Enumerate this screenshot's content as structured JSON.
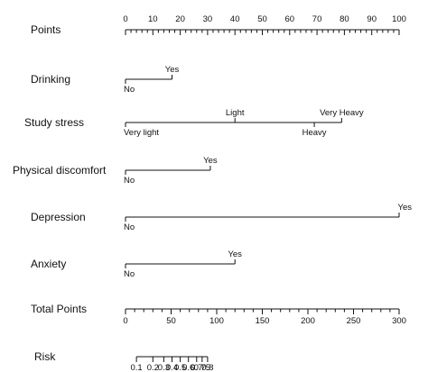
{
  "chart_data": {
    "type": "nomogram",
    "points": {
      "label": "Points",
      "range": [
        0,
        100
      ],
      "major_ticks": [
        0,
        10,
        20,
        30,
        40,
        50,
        60,
        70,
        80,
        90,
        100
      ],
      "minor_step": 2
    },
    "predictors": [
      {
        "label": "Drinking",
        "levels": [
          {
            "name": "No",
            "points": 0,
            "text_pos": "below"
          },
          {
            "name": "Yes",
            "points": 17,
            "text_pos": "above"
          }
        ]
      },
      {
        "label": "Study stress",
        "levels": [
          {
            "name": "Very light",
            "points": 0,
            "text_pos": "below"
          },
          {
            "name": "Light",
            "points": 40,
            "text_pos": "above"
          },
          {
            "name": "Heavy",
            "points": 69,
            "text_pos": "below"
          },
          {
            "name": "Very Heavy",
            "points": 79,
            "text_pos": "above"
          }
        ]
      },
      {
        "label": "Physical discomfort",
        "levels": [
          {
            "name": "No",
            "points": 0,
            "text_pos": "below"
          },
          {
            "name": "Yes",
            "points": 31,
            "text_pos": "above"
          }
        ]
      },
      {
        "label": "Depression",
        "levels": [
          {
            "name": "No",
            "points": 0,
            "text_pos": "below"
          },
          {
            "name": "Yes",
            "points": 100,
            "text_pos": "above"
          }
        ]
      },
      {
        "label": "Anxiety",
        "levels": [
          {
            "name": "No",
            "points": 0,
            "text_pos": "below"
          },
          {
            "name": "Yes",
            "points": 40,
            "text_pos": "above"
          }
        ]
      }
    ],
    "total_points": {
      "label": "Total Points",
      "range": [
        0,
        300
      ],
      "major_ticks": [
        0,
        50,
        100,
        150,
        200,
        250,
        300
      ],
      "minor_step": 10
    },
    "risk": {
      "label": "Risk",
      "ticks": [
        {
          "value": "0.1",
          "total_points": 12
        },
        {
          "value": "0.2",
          "total_points": 30
        },
        {
          "value": "0.3",
          "total_points": 42
        },
        {
          "value": "0.4",
          "total_points": 51
        },
        {
          "value": "0.5",
          "total_points": 60
        },
        {
          "value": "0.6",
          "total_points": 69
        },
        {
          "value": "0.7",
          "total_points": 78
        },
        {
          "value": "0.75",
          "total_points": 84
        },
        {
          "value": "0.8",
          "total_points": 90
        }
      ]
    }
  }
}
